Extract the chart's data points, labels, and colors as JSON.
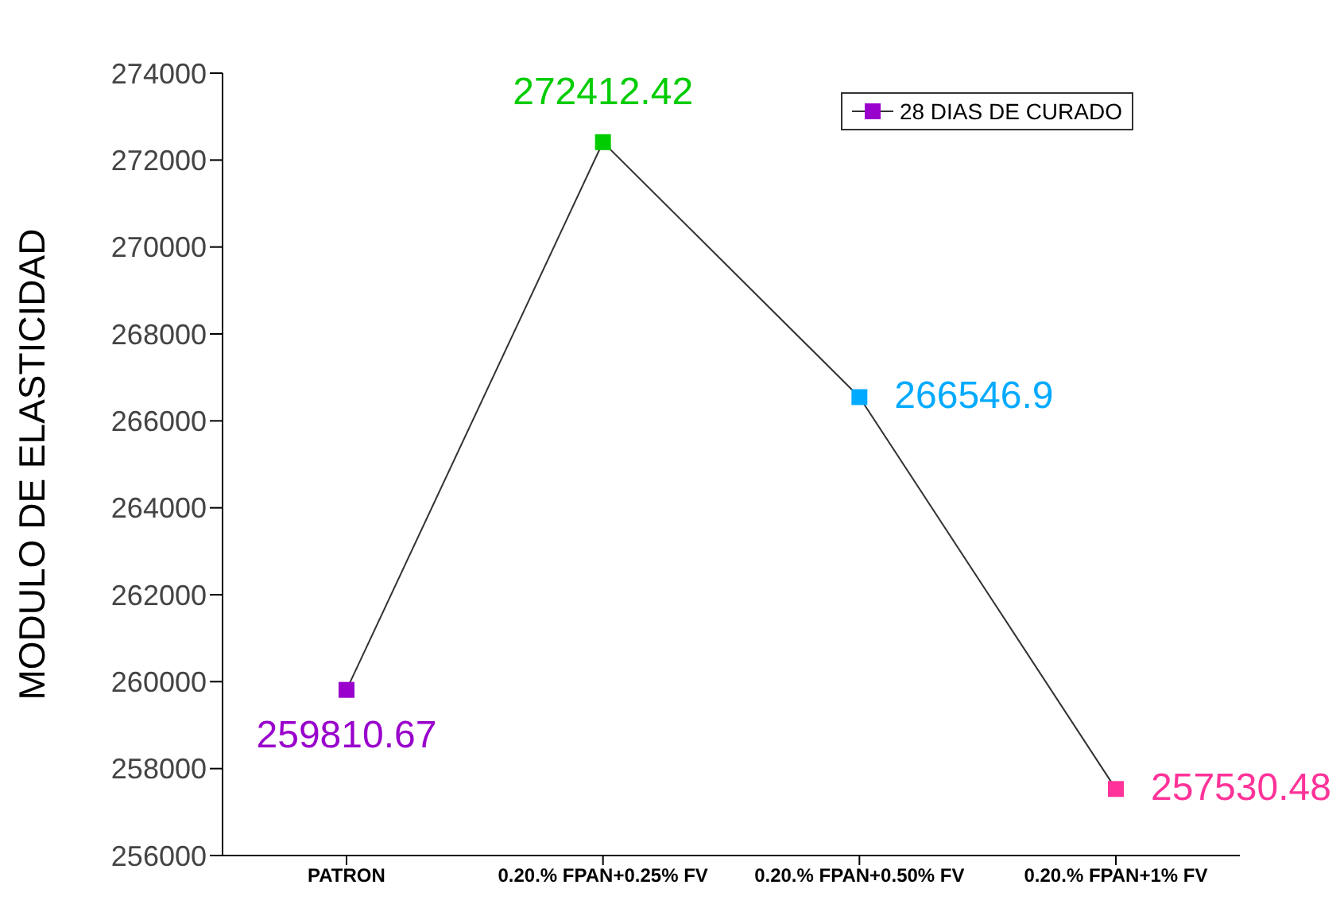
{
  "chart_data": {
    "type": "line",
    "ylabel": "MODULO DE ELASTICIDAD",
    "categories": [
      "PATRON",
      "0.20.% FPAN+0.25% FV",
      "0.20.% FPAN+0.50% FV",
      "0.20.% FPAN+1% FV"
    ],
    "series": [
      {
        "name": "28 DIAS DE CURADO",
        "color": "#333333",
        "colors": [
          "#9900cc",
          "#00cc00",
          "#00aaff",
          "#ff3399"
        ],
        "values": [
          259810.67,
          272412.42,
          266546.9,
          257530.48
        ]
      }
    ],
    "ylim": [
      256000,
      274000
    ],
    "yticks": [
      256000,
      258000,
      260000,
      262000,
      264000,
      266000,
      268000,
      270000,
      272000,
      274000
    ],
    "data_labels": true,
    "marker": "square",
    "legend": "top right",
    "grid": false
  }
}
